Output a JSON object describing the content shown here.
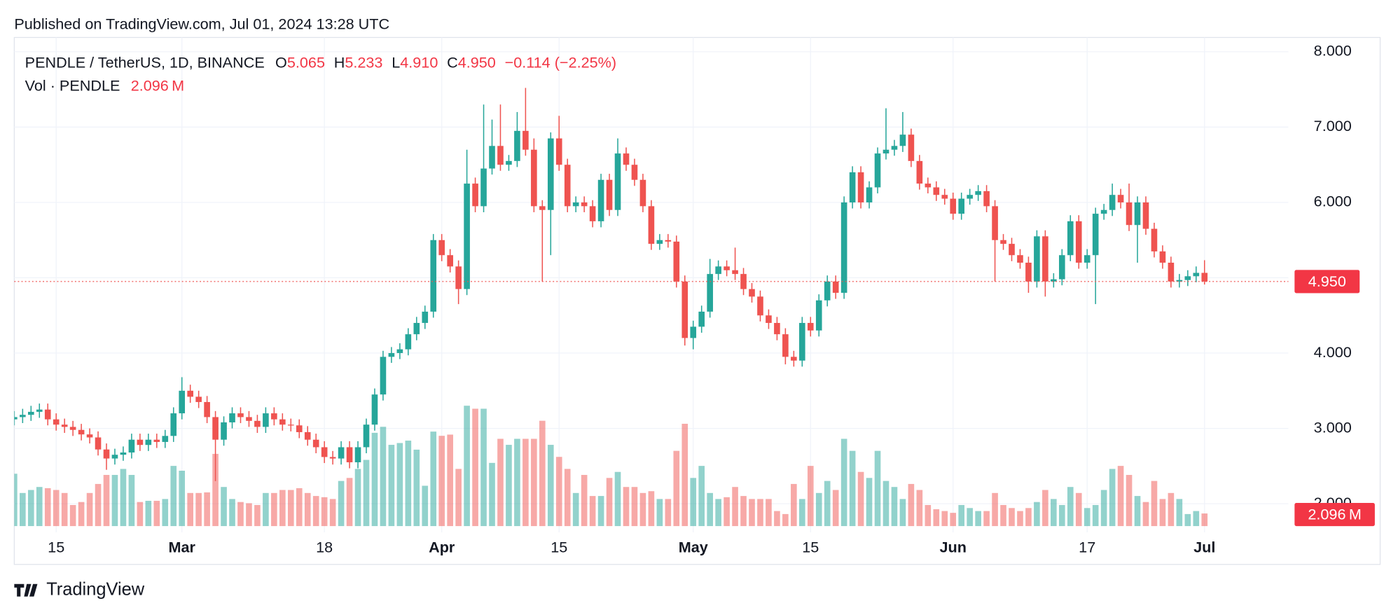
{
  "page": {
    "published": "Published on TradingView.com, Jul 01, 2024 13:28 UTC",
    "brand": "TradingView"
  },
  "chart_data": {
    "type": "candlestick",
    "legend": {
      "symbol": "PENDLE / TetherUS, 1D, BINANCE",
      "o_key": "O",
      "o": "5.065",
      "h_key": "H",
      "h": "5.233",
      "l_key": "L",
      "l": "4.910",
      "c_key": "C",
      "c": "4.950",
      "change": "−0.114 (−2.25%)",
      "volume_name": "Vol · PENDLE",
      "last_volume_label": "2.096 M",
      "price_tag": "4.950"
    },
    "up_color": "#26a69a",
    "down_color": "#ef5350",
    "xlim": [
      41,
      193
    ],
    "ylim": [
      1.62,
      8.19
    ],
    "xticks": [
      {
        "value": 46,
        "label": "15"
      },
      {
        "value": 61,
        "label": "Mar"
      },
      {
        "value": 78,
        "label": "18"
      },
      {
        "value": 92,
        "label": "Apr"
      },
      {
        "value": 106,
        "label": "15"
      },
      {
        "value": 122,
        "label": "May"
      },
      {
        "value": 136,
        "label": "15"
      },
      {
        "value": 153,
        "label": "Jun"
      },
      {
        "value": 169,
        "label": "17"
      },
      {
        "value": 183,
        "label": "Jul"
      }
    ],
    "yticks": [
      {
        "value": 2,
        "label": "2.000"
      },
      {
        "value": 3,
        "label": "3.000"
      },
      {
        "value": 4,
        "label": "4.000"
      },
      {
        "value": 5,
        "label": "5.000"
      },
      {
        "value": 6,
        "label": "6.000"
      },
      {
        "value": 7,
        "label": "7.000"
      },
      {
        "value": 8,
        "label": "8.000"
      }
    ],
    "grid": true,
    "x": [
      41,
      42,
      43,
      44,
      45,
      46,
      47,
      48,
      49,
      50,
      51,
      52,
      53,
      54,
      55,
      56,
      57,
      58,
      59,
      60,
      61,
      62,
      63,
      64,
      65,
      66,
      67,
      68,
      69,
      70,
      71,
      72,
      73,
      74,
      75,
      76,
      77,
      78,
      79,
      80,
      81,
      82,
      83,
      84,
      85,
      86,
      87,
      88,
      89,
      90,
      91,
      92,
      93,
      94,
      95,
      96,
      97,
      98,
      99,
      100,
      101,
      102,
      103,
      104,
      105,
      106,
      107,
      108,
      109,
      110,
      111,
      112,
      113,
      114,
      115,
      116,
      117,
      118,
      119,
      120,
      121,
      122,
      123,
      124,
      125,
      126,
      127,
      128,
      129,
      130,
      131,
      132,
      133,
      134,
      135,
      136,
      137,
      138,
      139,
      140,
      141,
      142,
      143,
      144,
      145,
      146,
      147,
      148,
      149,
      150,
      151,
      152,
      153,
      154,
      155,
      156,
      157,
      158,
      159,
      160,
      161,
      162,
      163,
      164,
      165,
      166,
      167,
      168,
      169,
      170,
      171,
      172,
      173,
      174,
      175,
      176,
      177,
      178,
      179,
      180,
      181,
      182,
      183
    ],
    "open": [
      3.12,
      3.15,
      3.18,
      3.22,
      3.25,
      3.12,
      3.05,
      3.02,
      2.98,
      2.92,
      2.88,
      2.72,
      2.6,
      2.65,
      2.68,
      2.85,
      2.78,
      2.85,
      2.82,
      2.9,
      3.2,
      3.5,
      3.42,
      3.35,
      3.15,
      2.85,
      3.08,
      3.2,
      3.15,
      3.1,
      3.02,
      3.2,
      3.12,
      3.05,
      3.04,
      2.95,
      2.85,
      2.75,
      2.62,
      2.6,
      2.75,
      2.55,
      2.75,
      3.05,
      3.45,
      3.95,
      4.0,
      4.05,
      4.25,
      4.4,
      4.55,
      5.5,
      5.3,
      5.15,
      4.85,
      6.25,
      5.95,
      6.45,
      6.75,
      6.5,
      6.55,
      6.95,
      6.7,
      5.95,
      5.9,
      6.85,
      6.5,
      5.95,
      6.0,
      5.95,
      5.75,
      6.3,
      5.9,
      6.65,
      6.5,
      6.3,
      5.95,
      5.45,
      5.5,
      5.48,
      4.95,
      4.2,
      4.35,
      4.55,
      5.05,
      5.15,
      5.1,
      5.05,
      4.85,
      4.75,
      4.5,
      4.4,
      4.25,
      3.95,
      3.9,
      4.4,
      4.3,
      4.7,
      4.95,
      4.8,
      6.0,
      6.4,
      6.0,
      6.2,
      6.65,
      6.7,
      6.75,
      6.9,
      6.55,
      6.25,
      6.2,
      6.1,
      6.05,
      5.85,
      6.05,
      6.1,
      6.15,
      5.95,
      5.5,
      5.45,
      5.3,
      5.2,
      4.95,
      5.55,
      4.95,
      4.98,
      5.3,
      5.75,
      5.2,
      5.3,
      5.85,
      5.9,
      6.1,
      6.0,
      5.7,
      6.0,
      5.65,
      5.35,
      5.2,
      4.95,
      4.97,
      5.02,
      5.065
    ],
    "high": [
      3.23,
      3.26,
      3.3,
      3.33,
      3.33,
      3.2,
      3.13,
      3.1,
      3.06,
      3.0,
      2.96,
      2.8,
      2.73,
      2.76,
      2.93,
      2.93,
      2.93,
      2.93,
      2.98,
      3.28,
      3.68,
      3.58,
      3.5,
      3.43,
      3.23,
      3.16,
      3.28,
      3.28,
      3.23,
      3.18,
      3.28,
      3.28,
      3.2,
      3.13,
      3.12,
      3.03,
      2.93,
      2.83,
      2.7,
      2.83,
      2.83,
      2.83,
      3.13,
      3.53,
      4.03,
      4.08,
      4.13,
      4.33,
      4.48,
      4.63,
      5.58,
      5.58,
      5.38,
      5.23,
      6.7,
      6.33,
      7.3,
      7.1,
      7.3,
      6.63,
      7.2,
      7.52,
      6.85,
      6.03,
      6.93,
      7.15,
      6.58,
      6.08,
      6.08,
      6.03,
      6.38,
      6.38,
      6.85,
      6.73,
      6.58,
      6.38,
      6.03,
      5.58,
      5.58,
      5.56,
      5.03,
      4.43,
      4.63,
      5.25,
      5.23,
      5.23,
      5.4,
      5.13,
      4.93,
      4.83,
      4.58,
      4.48,
      4.33,
      4.03,
      4.48,
      4.48,
      4.78,
      5.03,
      5.03,
      6.08,
      6.48,
      6.48,
      6.28,
      6.73,
      7.25,
      6.83,
      7.2,
      6.98,
      6.63,
      6.33,
      6.28,
      6.18,
      6.13,
      6.13,
      6.18,
      6.23,
      6.23,
      6.03,
      5.58,
      5.53,
      5.38,
      5.28,
      5.63,
      5.63,
      5.06,
      5.38,
      5.83,
      5.83,
      5.38,
      5.93,
      5.98,
      6.25,
      6.18,
      6.25,
      6.08,
      6.08,
      5.73,
      5.43,
      5.28,
      5.05,
      5.1,
      5.15,
      5.233
    ],
    "low": [
      3.04,
      3.07,
      3.1,
      3.14,
      3.04,
      2.97,
      2.94,
      2.9,
      2.84,
      2.8,
      2.64,
      2.45,
      2.52,
      2.57,
      2.6,
      2.7,
      2.7,
      2.74,
      2.74,
      2.82,
      3.12,
      3.34,
      3.27,
      3.07,
      2.3,
      2.77,
      3.0,
      3.07,
      3.02,
      2.94,
      2.94,
      3.04,
      2.97,
      2.96,
      2.87,
      2.77,
      2.67,
      2.54,
      2.52,
      2.52,
      2.47,
      2.47,
      2.67,
      2.97,
      3.37,
      3.87,
      3.92,
      3.97,
      4.17,
      4.32,
      4.47,
      5.22,
      5.07,
      4.65,
      4.77,
      5.87,
      5.87,
      6.37,
      6.42,
      6.42,
      6.47,
      6.62,
      5.87,
      4.95,
      5.3,
      6.42,
      5.87,
      5.87,
      5.87,
      5.67,
      5.67,
      5.82,
      5.82,
      6.42,
      6.22,
      5.87,
      5.37,
      5.37,
      5.4,
      4.87,
      4.1,
      4.05,
      4.27,
      4.47,
      4.97,
      5.02,
      4.97,
      4.77,
      4.67,
      4.42,
      4.32,
      4.17,
      3.85,
      3.82,
      3.82,
      4.22,
      4.22,
      4.62,
      4.72,
      4.72,
      5.92,
      5.92,
      5.92,
      6.12,
      6.57,
      6.62,
      6.67,
      6.47,
      6.17,
      6.12,
      6.02,
      5.97,
      5.77,
      5.77,
      5.97,
      6.02,
      5.87,
      4.95,
      5.37,
      5.22,
      5.12,
      4.8,
      4.87,
      4.75,
      4.87,
      4.9,
      5.22,
      5.12,
      5.12,
      4.65,
      5.77,
      5.82,
      5.92,
      5.62,
      5.2,
      5.57,
      5.27,
      5.12,
      4.87,
      4.87,
      4.89,
      4.94,
      4.91
    ],
    "close": [
      3.15,
      3.18,
      3.22,
      3.25,
      3.12,
      3.05,
      3.02,
      2.98,
      2.92,
      2.88,
      2.72,
      2.6,
      2.65,
      2.68,
      2.85,
      2.78,
      2.85,
      2.82,
      2.9,
      3.2,
      3.5,
      3.42,
      3.35,
      3.15,
      2.85,
      3.08,
      3.2,
      3.15,
      3.1,
      3.02,
      3.2,
      3.12,
      3.05,
      3.04,
      2.95,
      2.85,
      2.75,
      2.62,
      2.6,
      2.75,
      2.55,
      2.75,
      3.05,
      3.45,
      3.95,
      4.0,
      4.05,
      4.25,
      4.4,
      4.55,
      5.5,
      5.3,
      5.15,
      4.85,
      6.25,
      5.95,
      6.45,
      6.75,
      6.5,
      6.55,
      6.95,
      6.7,
      5.95,
      5.9,
      6.85,
      6.5,
      5.95,
      6.0,
      5.95,
      5.75,
      6.3,
      5.9,
      6.65,
      6.5,
      6.3,
      5.95,
      5.45,
      5.5,
      5.48,
      4.95,
      4.2,
      4.35,
      4.55,
      5.05,
      5.15,
      5.1,
      5.05,
      4.85,
      4.75,
      4.5,
      4.4,
      4.25,
      3.95,
      3.9,
      4.4,
      4.3,
      4.7,
      4.95,
      4.8,
      6.0,
      6.4,
      6.0,
      6.2,
      6.65,
      6.7,
      6.75,
      6.9,
      6.55,
      6.25,
      6.2,
      6.1,
      6.05,
      5.85,
      6.05,
      6.1,
      6.15,
      5.95,
      5.5,
      5.45,
      5.3,
      5.2,
      4.95,
      5.55,
      4.95,
      4.98,
      5.3,
      5.75,
      5.2,
      5.3,
      5.85,
      5.9,
      6.1,
      6.0,
      5.7,
      6.0,
      5.65,
      5.35,
      5.2,
      4.95,
      4.97,
      5.02,
      5.065,
      4.95
    ],
    "volume": [
      8.7,
      5.5,
      6.0,
      6.5,
      6.3,
      6.0,
      5.5,
      3.5,
      4.0,
      5.5,
      7.0,
      8.5,
      8.5,
      9.5,
      8.5,
      4.0,
      4.2,
      4.2,
      4.5,
      10.0,
      9.2,
      5.5,
      5.5,
      5.6,
      12.0,
      6.5,
      4.5,
      4.0,
      3.8,
      3.5,
      5.5,
      5.5,
      6.0,
      6.0,
      6.3,
      5.5,
      5.0,
      4.8,
      4.5,
      7.5,
      8.0,
      9.5,
      11.0,
      15.5,
      16.5,
      13.5,
      13.8,
      14.2,
      12.7,
      6.7,
      15.7,
      15.0,
      15.2,
      9.5,
      20.0,
      19.5,
      19.5,
      10.5,
      14.5,
      13.5,
      14.5,
      14.5,
      14.5,
      17.5,
      13.5,
      11.5,
      9.5,
      5.5,
      8.5,
      5.0,
      5.0,
      8.0,
      9.0,
      6.5,
      6.5,
      5.5,
      5.8,
      4.5,
      4.5,
      12.5,
      17.0,
      8.0,
      10.0,
      5.5,
      4.5,
      4.8,
      6.5,
      5.0,
      4.5,
      4.5,
      4.5,
      2.5,
      2.0,
      7.0,
      4.5,
      10.0,
      5.5,
      7.5,
      6.0,
      14.5,
      12.5,
      9.0,
      8.0,
      12.5,
      7.5,
      6.5,
      4.5,
      7.0,
      6.0,
      3.5,
      2.8,
      2.5,
      2.2,
      3.5,
      3.0,
      2.5,
      2.5,
      5.5,
      3.5,
      3.0,
      2.5,
      3.0,
      4.0,
      6.0,
      4.5,
      3.5,
      6.5,
      5.5,
      3.0,
      3.5,
      6.0,
      9.5,
      10.0,
      8.5,
      5.0,
      4.0,
      7.5,
      4.5,
      5.5,
      4.5,
      2.0,
      2.5,
      2.096
    ]
  }
}
